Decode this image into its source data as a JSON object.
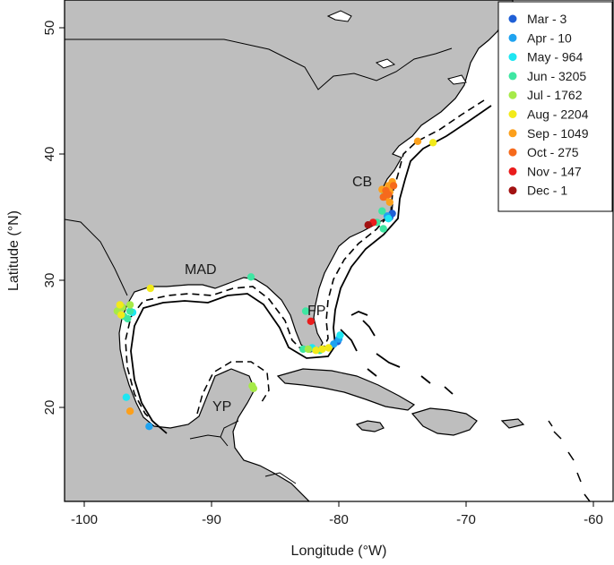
{
  "chart_data": {
    "type": "scatter",
    "title": "",
    "xlabel": "Longitude (°W)",
    "ylabel": "Latitude (°N)",
    "xlim": [
      -102,
      -58.5
    ],
    "ylim": [
      13,
      52.3
    ],
    "x_ticks": [
      -100,
      -90,
      -80,
      -70,
      -60
    ],
    "y_ticks": [
      20,
      30,
      40,
      50
    ],
    "legend_position": "top-right",
    "region_labels": [
      {
        "text": "MAD",
        "lon": -89.8,
        "lat": 30.9
      },
      {
        "text": "CB",
        "lon": -77.9,
        "lat": 37.9
      },
      {
        "text": "FP",
        "lon": -81.9,
        "lat": 27.5
      },
      {
        "text": "YP",
        "lon": -89.0,
        "lat": 20.3
      }
    ],
    "series": [
      {
        "name": "Mar - 3",
        "color": "#1f5fd6",
        "points": [
          [
            -75.8,
            35.3
          ],
          [
            -76.0,
            35.0
          ],
          [
            -80.1,
            25.2
          ]
        ]
      },
      {
        "name": "Apr - 10",
        "color": "#1fa3f0",
        "points": [
          [
            -76.2,
            35.1
          ],
          [
            -80.0,
            25.4
          ],
          [
            -94.9,
            18.5
          ],
          [
            -80.4,
            25.0
          ]
        ]
      },
      {
        "name": "May - 964",
        "color": "#1ee6f2",
        "points": [
          [
            -76.1,
            34.9
          ],
          [
            -79.9,
            25.7
          ],
          [
            -96.7,
            20.8
          ],
          [
            -96.2,
            27.5
          ],
          [
            -82.1,
            24.7
          ]
        ]
      },
      {
        "name": "Jun - 3205",
        "color": "#3ee6a2",
        "points": [
          [
            -96.9,
            27.2
          ],
          [
            -96.4,
            27.6
          ],
          [
            -82.8,
            24.6
          ],
          [
            -81.5,
            24.5
          ],
          [
            -77.0,
            34.6
          ],
          [
            -76.5,
            34.1
          ],
          [
            -86.9,
            30.3
          ],
          [
            -96.6,
            27.0
          ],
          [
            -82.6,
            27.6
          ],
          [
            -76.4,
            37.0
          ],
          [
            -76.6,
            35.5
          ]
        ]
      },
      {
        "name": "Jul - 1762",
        "color": "#a6ea48",
        "points": [
          [
            -97.0,
            27.9
          ],
          [
            -96.4,
            28.1
          ],
          [
            -86.7,
            21.5
          ],
          [
            -86.8,
            21.7
          ],
          [
            -82.4,
            24.6
          ],
          [
            -97.4,
            27.6
          ]
        ]
      },
      {
        "name": "Aug - 2204",
        "color": "#f2ea1a",
        "points": [
          [
            -94.8,
            29.4
          ],
          [
            -97.2,
            28.1
          ],
          [
            -81.8,
            24.5
          ],
          [
            -81.3,
            24.6
          ],
          [
            -80.8,
            24.7
          ],
          [
            -72.6,
            40.9
          ],
          [
            -97.1,
            27.3
          ]
        ]
      },
      {
        "name": "Sep - 1049",
        "color": "#fca01c",
        "points": [
          [
            -76.1,
            37.5
          ],
          [
            -75.8,
            37.8
          ],
          [
            -76.6,
            37.2
          ],
          [
            -76.0,
            37.0
          ],
          [
            -76.0,
            36.2
          ],
          [
            -73.8,
            41.0
          ],
          [
            -96.4,
            19.7
          ],
          [
            -76.3,
            36.6
          ]
        ]
      },
      {
        "name": "Oct - 275",
        "color": "#f66a1c",
        "points": [
          [
            -76.3,
            37.1
          ],
          [
            -75.7,
            37.5
          ],
          [
            -76.1,
            36.8
          ],
          [
            -76.5,
            36.6
          ]
        ]
      },
      {
        "name": "Nov - 147",
        "color": "#ea1c1c",
        "points": [
          [
            -82.2,
            26.8
          ],
          [
            -77.3,
            34.6
          ]
        ]
      },
      {
        "name": "Dec - 1",
        "color": "#a21212",
        "points": [
          [
            -77.7,
            34.4
          ]
        ]
      }
    ]
  }
}
